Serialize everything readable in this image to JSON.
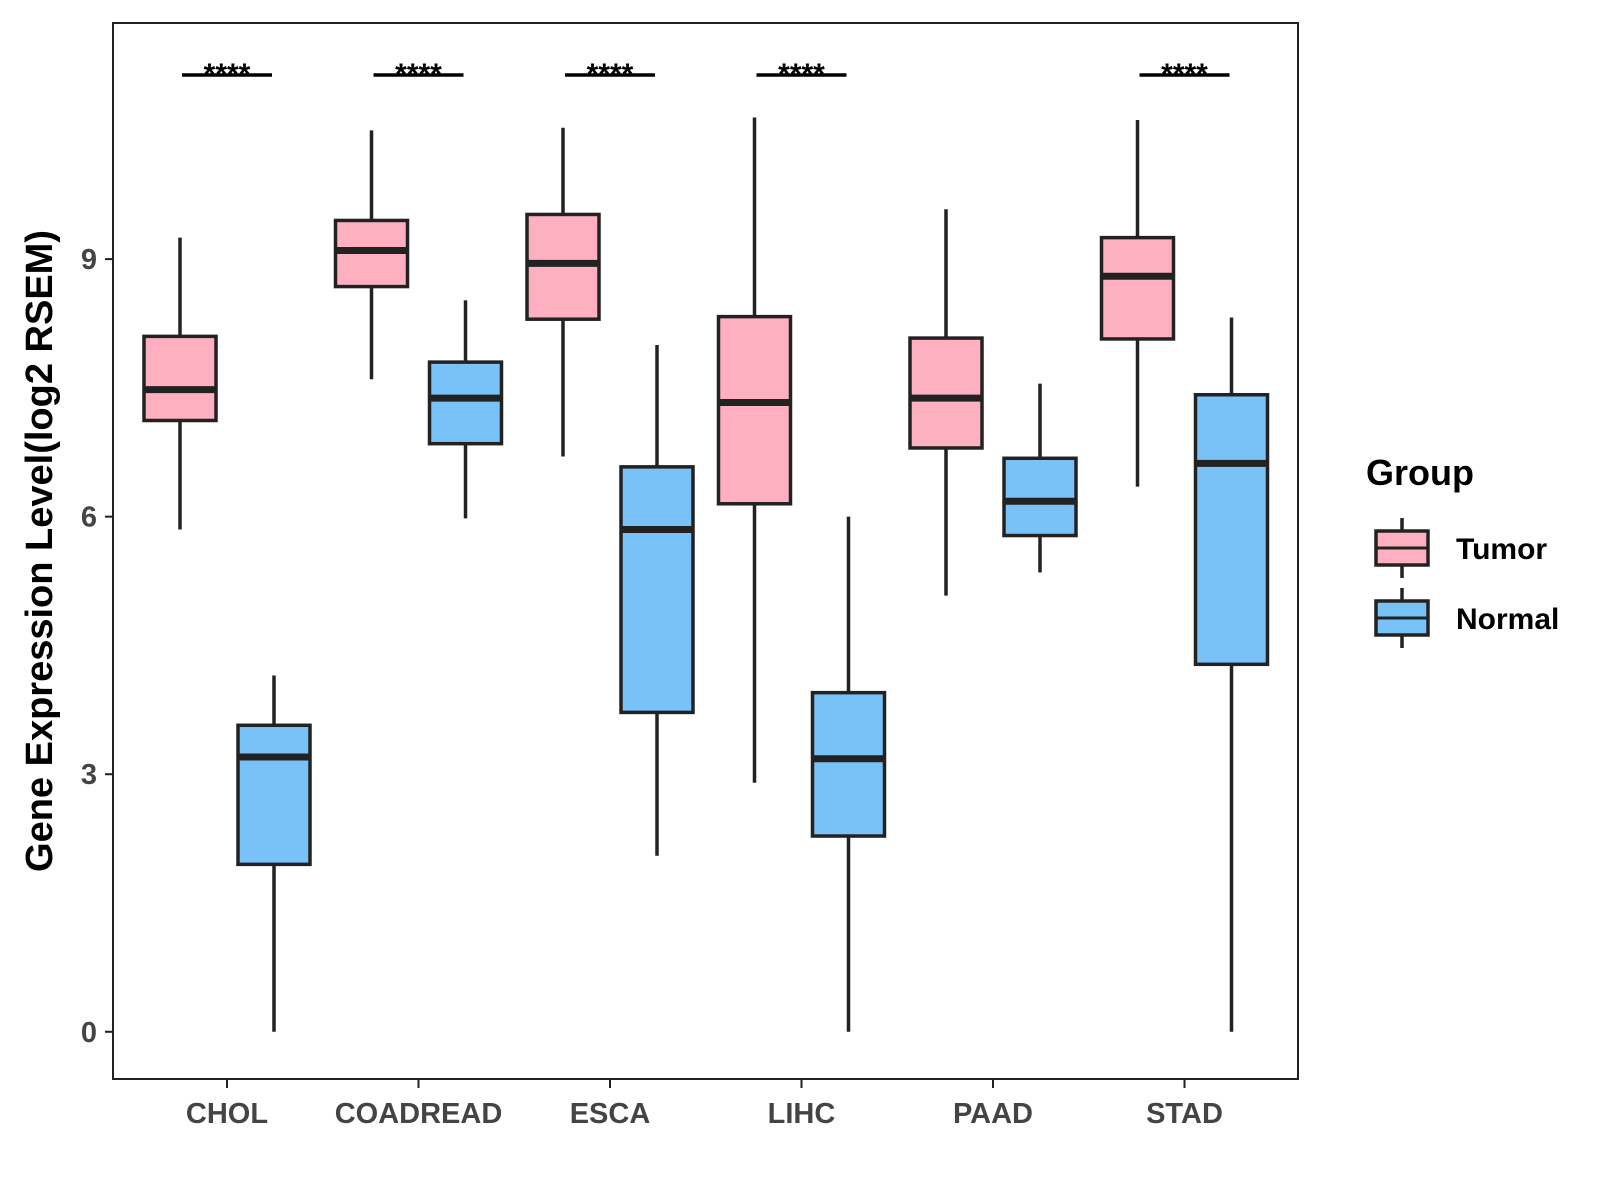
{
  "chart_data": {
    "type": "box",
    "title": "",
    "xlabel": "",
    "ylabel": "Gene Expression Level(log2 RSEM)",
    "ylim": [
      -0.55,
      11.75
    ],
    "yticks": [
      0,
      3,
      6,
      9
    ],
    "categories": [
      "CHOL",
      "COADREAD",
      "ESCA",
      "LIHC",
      "PAAD",
      "STAD"
    ],
    "significance": [
      "****",
      "****",
      "****",
      "****",
      "",
      "****"
    ],
    "legend": {
      "title": "Group",
      "position": "right"
    },
    "series": [
      {
        "name": "Tumor",
        "color": "#FFB0C0",
        "boxes": [
          {
            "min": 5.85,
            "q1": 7.12,
            "median": 7.48,
            "q3": 8.1,
            "max": 9.25
          },
          {
            "min": 7.6,
            "q1": 8.68,
            "median": 9.1,
            "q3": 9.45,
            "max": 10.5
          },
          {
            "min": 6.7,
            "q1": 8.3,
            "median": 8.95,
            "q3": 9.52,
            "max": 10.53
          },
          {
            "min": 2.9,
            "q1": 6.15,
            "median": 7.33,
            "q3": 8.33,
            "max": 10.65
          },
          {
            "min": 5.08,
            "q1": 6.8,
            "median": 7.38,
            "q3": 8.08,
            "max": 9.58
          },
          {
            "min": 6.35,
            "q1": 8.07,
            "median": 8.8,
            "q3": 9.25,
            "max": 10.62
          }
        ]
      },
      {
        "name": "Normal",
        "color": "#78C2F8",
        "boxes": [
          {
            "min": 0.0,
            "q1": 1.95,
            "median": 3.2,
            "q3": 3.57,
            "max": 4.15
          },
          {
            "min": 5.98,
            "q1": 6.85,
            "median": 7.38,
            "q3": 7.8,
            "max": 8.52
          },
          {
            "min": 2.05,
            "q1": 3.72,
            "median": 5.85,
            "q3": 6.58,
            "max": 8.0
          },
          {
            "min": 0.0,
            "q1": 2.28,
            "median": 3.18,
            "q3": 3.95,
            "max": 6.0
          },
          {
            "min": 5.35,
            "q1": 5.78,
            "median": 6.18,
            "q3": 6.68,
            "max": 7.55
          },
          {
            "min": 0.0,
            "q1": 4.28,
            "median": 6.62,
            "q3": 7.42,
            "max": 8.32
          }
        ]
      }
    ]
  }
}
